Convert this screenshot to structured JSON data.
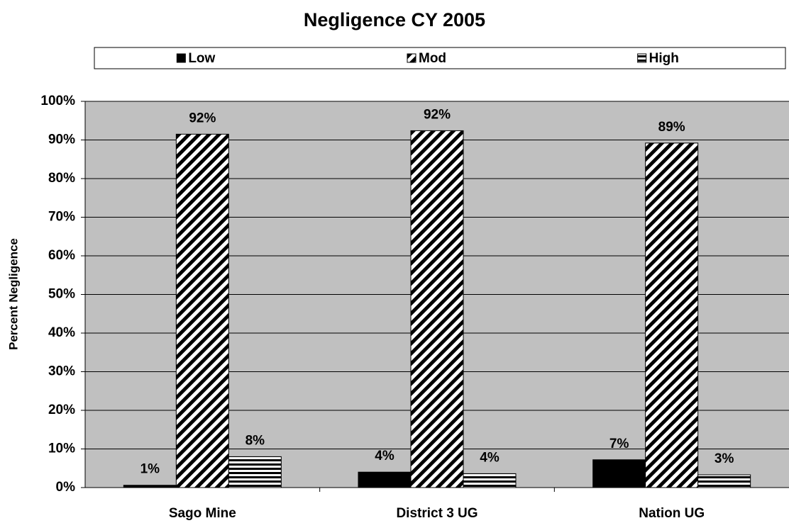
{
  "chart_data": {
    "type": "bar",
    "title": "Negligence  CY 2005",
    "y_label": "Percent Negligence",
    "categories": [
      "Sago Mine",
      "District 3 UG",
      "Nation UG"
    ],
    "series": [
      {
        "name": "Low",
        "color": "#000000",
        "pattern": "solid",
        "values": [
          0.6,
          4,
          7.2
        ],
        "value_labels": [
          "1%",
          "4%",
          "7%"
        ]
      },
      {
        "name": "Mod",
        "color": "#000000",
        "pattern": "diagonal",
        "values": [
          91.5,
          92.4,
          89.2
        ],
        "value_labels": [
          "92%",
          "92%",
          "89%"
        ]
      },
      {
        "name": "High",
        "color": "#000000",
        "pattern": "horizontal",
        "values": [
          8,
          3.6,
          3.3
        ],
        "value_labels": [
          "8%",
          "4%",
          "3%"
        ]
      }
    ],
    "ylim": [
      0,
      100
    ],
    "yticks": [
      {
        "value": 0,
        "label": "0%"
      },
      {
        "value": 10,
        "label": "10%"
      },
      {
        "value": 20,
        "label": "20%"
      },
      {
        "value": 30,
        "label": "30%"
      },
      {
        "value": 40,
        "label": "40%"
      },
      {
        "value": 50,
        "label": "50%"
      },
      {
        "value": 60,
        "label": "60%"
      },
      {
        "value": 70,
        "label": "70%"
      },
      {
        "value": 80,
        "label": "80%"
      },
      {
        "value": 90,
        "label": "90%"
      },
      {
        "value": 100,
        "label": "100%"
      }
    ],
    "grid": true,
    "legend": "top"
  }
}
